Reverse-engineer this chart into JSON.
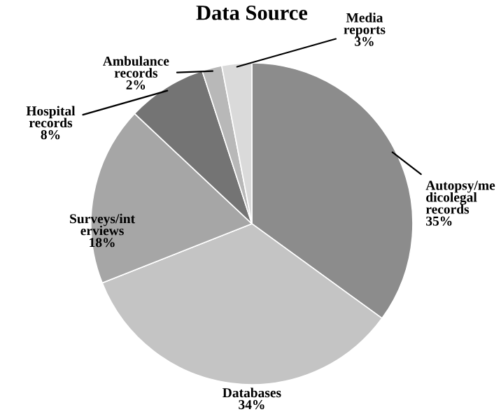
{
  "chart_data": {
    "type": "pie",
    "title": "Data Source",
    "categories": [
      "Autopsy/me\ndicolegal\nrecords",
      "Databases",
      "Surveys/int\nerviews",
      "Hospital\nrecords",
      "Ambulance\nrecords",
      "Media\nreports"
    ],
    "values": [
      35,
      34,
      18,
      8,
      2,
      3
    ],
    "colors": [
      "#8c8c8c",
      "#c4c4c4",
      "#a6a6a6",
      "#747474",
      "#b8b8b8",
      "#dadada"
    ],
    "value_labels": [
      "35%",
      "34%",
      "18%",
      "8%",
      "2%",
      "3%"
    ],
    "legend": false
  }
}
